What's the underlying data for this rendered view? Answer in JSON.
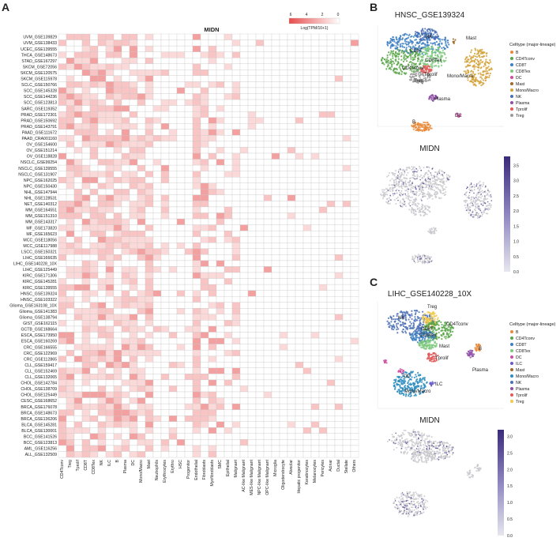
{
  "panels": {
    "a": {
      "letter": "A",
      "title": "MIDN",
      "colorbar": {
        "ticks": [
          "6",
          "4",
          "2",
          "0"
        ],
        "label": "Log(TPM/10+1)",
        "low": "#ffffff",
        "high": "#e74c4c"
      },
      "rows": [
        "UVM_GSE139829",
        "UVM_GSE138433",
        "UCEC_GSE139555",
        "THCA_GSE148673",
        "STAD_GSE167297",
        "SKCM_GSE72056",
        "SKCM_GSE120575",
        "SKCM_GSE115978",
        "SCLC_GSE150766",
        "SCC_GSE145328",
        "SCC_GSE144236",
        "SCC_GSE123813",
        "SARC_GSE119352",
        "PRAD_GSE172301",
        "PRAD_GSE150692",
        "PRAD_GSE143791",
        "PAAD_GSE111672",
        "PAAD_CRA001160",
        "OV_GSE154600",
        "OV_GSE151214",
        "OV_GSE118828",
        "NSCLC_GSE99254",
        "NSCLC_GSE139555",
        "NSCLC_GSE131907",
        "NPC_GSE162025",
        "NPC_GSE150430",
        "NHL_GSE147944",
        "NHL_GSE128531",
        "NET_GSE140312",
        "MM_GSE164551",
        "MM_GSE151310",
        "MM_GSE143317",
        "MF_GSE173820",
        "MF_GSE165623",
        "MCC_GSE118056",
        "MCC_GSE117988",
        "LSCC_GSE150321",
        "LIHC_GSE166635",
        "LIHC_GSE140228_10X",
        "LIHC_GSE125449",
        "KIRC_GSE171306",
        "KIRC_GSE145281",
        "KIRC_GSE139555",
        "HNSC_GSE139324",
        "HNSC_GSE103322",
        "Glioma_GSE163108_10X",
        "Glioma_GSE141383",
        "Glioma_GSE138794",
        "GIST_GSE162115",
        "GCTB_GSE168664",
        "ESCA_GSE173950",
        "ESCA_GSE160269",
        "CRC_GSE166555",
        "CRC_GSE122969",
        "CRC_GSE112865",
        "CLL_GSE159417",
        "CLL_GSE152469",
        "CLL_GSE132065",
        "CHOL_GSE142784",
        "CHOL_GSE138709",
        "CHOL_GSE125449",
        "CESC_GSE168652",
        "BRCA_GSE176078",
        "BRCA_GSE148673",
        "BRCA_GSE136206",
        "BLCA_GSE145281",
        "BLCA_GSE130001",
        "BCC_GSE141526",
        "BCC_GSE123813",
        "AML_GSE116256",
        "ALL_GSE132509"
      ],
      "columns": [
        "CD4Tconv",
        "Treg",
        "Tprolif",
        "CD8T",
        "CD8Tex",
        "NK",
        "ILC",
        "B",
        "Plasma",
        "DC",
        "Mono/Macro",
        "Mast",
        "Neutrophils",
        "Erythrocytes",
        "Erythro",
        "HSC",
        "Progenitor",
        "Endothelial",
        "Fibroblasts",
        "Myofibroblasts",
        "SMC",
        "Epithelial",
        "Malignant",
        "AC-like Malignant",
        "MES-like Malignant",
        "NPC-like Malignant",
        "OPC-like Malignant",
        "Microglia",
        "Oligodendrocyte",
        "Alveolar",
        "Hepatic progenitor",
        "Keratinocytes",
        "Melanocytes",
        "Pericytes",
        "Acinar",
        "Ductal",
        "Stellate",
        "Others"
      ]
    },
    "b": {
      "letter": "B",
      "title": "HNSC_GSE139324",
      "feature_title": "MIDN",
      "legend_title": "Celltype (major-lineage)",
      "legend": [
        {
          "label": "B",
          "color": "#e8893a"
        },
        {
          "label": "CD4Tconv",
          "color": "#5aa64a"
        },
        {
          "label": "CD8T",
          "color": "#3d7fc1"
        },
        {
          "label": "CD8Tex",
          "color": "#7fc97f"
        },
        {
          "label": "DC",
          "color": "#cc4da0"
        },
        {
          "label": "Mast",
          "color": "#9c6b30"
        },
        {
          "label": "Mono/Macro",
          "color": "#d4a23a"
        },
        {
          "label": "NK",
          "color": "#4a6fb5"
        },
        {
          "label": "Plasma",
          "color": "#8e4fa6"
        },
        {
          "label": "Tprolif",
          "color": "#e05a5a"
        },
        {
          "label": "Treg",
          "color": "#9a9a9a"
        }
      ],
      "clusters": [
        "NK",
        "Mast",
        "CD8T",
        "CD8Tex",
        "CD4Tconv",
        "Tprolif",
        "Mono/Macro",
        "Treg",
        "Plasma",
        "B",
        "DC"
      ],
      "colorbar_ticks": [
        "0.0",
        "0.5",
        "1.0",
        "1.5",
        "2.0",
        "2.5",
        "3.0",
        "3.5"
      ]
    },
    "c": {
      "letter": "C",
      "title": "LIHC_GSE140228_10X",
      "feature_title": "MIDN",
      "legend_title": "Celltype (major-lineage)",
      "legend": [
        {
          "label": "B",
          "color": "#e8893a"
        },
        {
          "label": "CD4Tconv",
          "color": "#5aa64a"
        },
        {
          "label": "CD8T",
          "color": "#3d7fc1"
        },
        {
          "label": "CD8Tex",
          "color": "#7fc97f"
        },
        {
          "label": "DC",
          "color": "#cc4da0"
        },
        {
          "label": "ILC",
          "color": "#6a5acd"
        },
        {
          "label": "Mast",
          "color": "#9c6b30"
        },
        {
          "label": "Mono/Macro",
          "color": "#2b8cbe"
        },
        {
          "label": "NK",
          "color": "#4a6fb5"
        },
        {
          "label": "Plasma",
          "color": "#8e4fa6"
        },
        {
          "label": "Tprolif",
          "color": "#e05a5a"
        },
        {
          "label": "Treg",
          "color": "#f2c94c"
        }
      ],
      "clusters": [
        "Treg",
        "NK",
        "CD8T",
        "CD4Tconv",
        "CD8Tex",
        "Mast",
        "Tprolif",
        "B",
        "Plasma",
        "DC",
        "ILC",
        "Mono/Macro"
      ],
      "colorbar_ticks": [
        "0.0",
        "0.5",
        "1.0",
        "1.5",
        "2.0",
        "2.5",
        "3.0"
      ]
    }
  }
}
